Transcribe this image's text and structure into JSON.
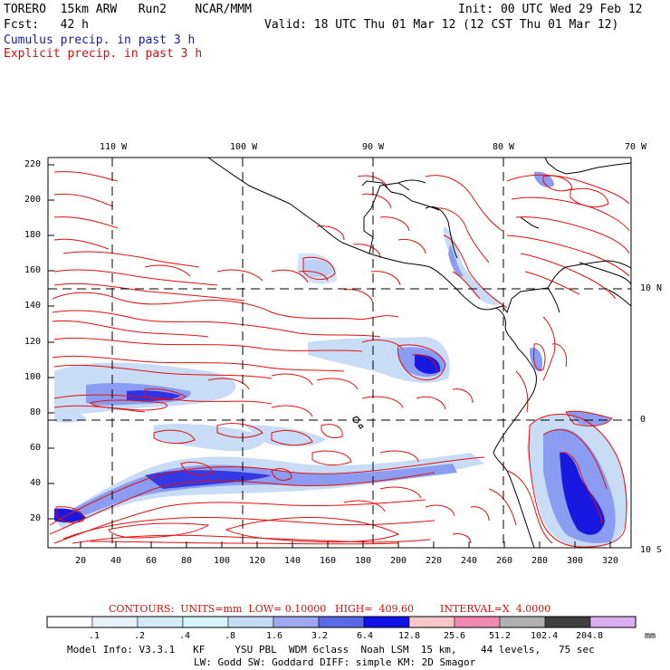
{
  "header": {
    "model": "TORERO  15km ARW   Run2    NCAR/MMM",
    "init": "Init: 00 UTC Wed 29 Feb 12",
    "fcst": "Fcst:   42 h",
    "valid": "Valid: 18 UTC Thu 01 Mar 12 (12 CST Thu 01 Mar 12)",
    "cumulus": "Cumulus precip. in past 3 h",
    "explicit": "Explicit precip. in past 3 h"
  },
  "axes": {
    "top_lon": [
      "110 W",
      "100 W",
      "90 W",
      "80 W",
      "70 W"
    ],
    "right_lat": [
      "10 N",
      "0",
      "10 S"
    ],
    "left_y": [
      "220",
      "200",
      "180",
      "160",
      "140",
      "120",
      "100",
      "80",
      "60",
      "40",
      "20"
    ],
    "bottom_x": [
      "20",
      "40",
      "60",
      "80",
      "100",
      "120",
      "140",
      "160",
      "180",
      "200",
      "220",
      "240",
      "260",
      "280",
      "300",
      "320"
    ]
  },
  "contour_info": {
    "contours": "CONTOURS:  UNITS=mm  LOW= 0.10000",
    "high": "HIGH=  409.60",
    "interval": "INTERVAL=X  4.0000"
  },
  "legend": {
    "labels": [
      ".1",
      ".2",
      ".4",
      ".8",
      "1.6",
      "3.2",
      "6.4",
      "12.8",
      "25.6",
      "51.2",
      "102.4",
      "204.8"
    ],
    "colors": [
      "#ffffff",
      "#e8f0f8",
      "#d4eaf8",
      "#d8f4fc",
      "#c4dcf4",
      "#9ea8ee",
      "#5a6ae6",
      "#1010e8",
      "#f8c8c8",
      "#f088b0",
      "#b0b0b0",
      "#404040",
      "#d8b0f0"
    ],
    "unit": "mm"
  },
  "model_info": {
    "line1": "Model Info: V3.3.1   KF     YSU PBL  WDM 6class  Noah LSM  15 km,    44 levels,   75 sec",
    "line2": "LW: Godd SW: Goddard DIFF: simple KM: 2D Smagor"
  },
  "map_colors": {
    "explicit": "#e01010",
    "cumulus_light": "#c8dcf6",
    "cumulus_mid": "#8c9cf0",
    "cumulus_dark": "#1818e0"
  }
}
